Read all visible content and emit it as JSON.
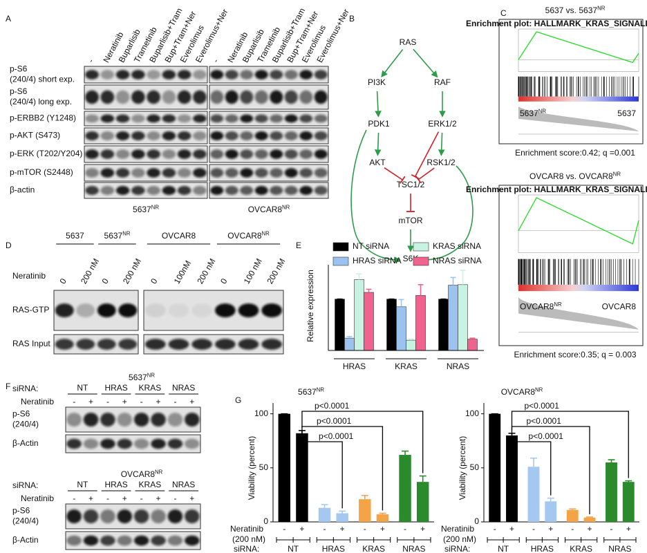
{
  "figure": {
    "panel_labels": [
      "A",
      "B",
      "C",
      "D",
      "E",
      "F",
      "G"
    ],
    "A": {
      "groups": [
        {
          "name": {
            "text": "5637",
            "sup": "NR"
          },
          "columns": [
            "-",
            "Neratinib",
            "Buparlisib",
            "Trametinib",
            "Buparlisib+Tram",
            "Bup+Tram+Ner",
            "Everolimus",
            "Everolimus+Ner"
          ]
        },
        {
          "name": {
            "text": "OVCAR8",
            "sup": "NR"
          },
          "columns": [
            "-",
            "Neratinib",
            "Buparlisib",
            "Trametinib",
            "Buparlisib+Tram",
            "Bup+Tram+Ner",
            "Everolimus",
            "Everolimus+Ner"
          ]
        }
      ],
      "rows": [
        [
          "p-S6",
          "(240/4) short exp."
        ],
        [
          "p-S6",
          "(240/4) long exp."
        ],
        [
          "p-ERBB2 (Y1248)"
        ],
        [
          "p-AKT (S473)"
        ],
        [
          "p-ERK (T202/Y204)"
        ],
        [
          "p-mTOR (S2448)"
        ],
        [
          "β-actin"
        ]
      ]
    },
    "B": {
      "nodes": [
        "RAS",
        "PI3K",
        "RAF",
        "PDK1",
        "ERK1/2",
        "AKT",
        "RSK1/2",
        "TSC1/2",
        "mTOR",
        "S6K"
      ]
    },
    "C": {
      "plots": [
        {
          "title": {
            "text": "5637 vs. 5637",
            "sup": "NR"
          },
          "plot_title": "Enrichment plot: HALLMARK_KRAS_SIGNALING_UP",
          "left": {
            "text": "5637",
            "sup": "NR"
          },
          "right": "5637",
          "caption": "Enrichment score:0.42; q =0.001"
        },
        {
          "title": {
            "text": "OVCAR8 vs. OVCAR8",
            "sup": "NR"
          },
          "plot_title": "Enrichment plot: HALLMARK_KRAS_SIGNALING_UP",
          "left": {
            "text": "OVCAR8",
            "sup": "NR"
          },
          "right": "OVCAR8",
          "caption": "Enrichment score:0.35; q = 0.003"
        }
      ]
    },
    "D": {
      "groups": [
        "5637",
        {
          "text": "5637",
          "sup": "NR"
        },
        "OVCAR8",
        {
          "text": "OVCAR8",
          "sup": "NR"
        }
      ],
      "treatment": "Neratinib",
      "lanes": [
        "0",
        "200 nM",
        "0",
        "200 nM",
        "0",
        "100nM",
        "200 nM",
        "0",
        "100 nM",
        "200 nM"
      ],
      "rows": [
        "RAS-GTP",
        "RAS Input"
      ]
    },
    "F": {
      "sirna_label": "siRNA:",
      "treatment_label": "Neratinib",
      "blots": [
        {
          "title": {
            "text": "5637",
            "sup": "NR"
          },
          "groups": [
            "NT",
            "HRAS",
            "KRAS",
            "NRAS"
          ],
          "signs": [
            "-",
            "+",
            "-",
            "+",
            "-",
            "+",
            "-",
            "+"
          ],
          "rows": [
            [
              "p-S6",
              "(240/4)"
            ],
            [
              "β-Actin"
            ]
          ]
        },
        {
          "title": {
            "text": "OVCAR8",
            "sup": "NR"
          },
          "groups": [
            "NT",
            "HRAS",
            "KRAS",
            "NRAS"
          ],
          "signs": [
            "-",
            "+",
            "-",
            "+",
            "-",
            "+",
            "-",
            "+"
          ],
          "rows": [
            [
              "p-S6",
              "(240/4)"
            ],
            [
              "β-Actin"
            ]
          ]
        }
      ]
    }
  },
  "chart_data": [
    {
      "type": "bar",
      "ylabel": "Relative expression",
      "categories": [
        "HRAS",
        "KRAS",
        "NRAS"
      ],
      "ylim": [
        0,
        1.6
      ],
      "series": [
        {
          "name": "NT siRNA",
          "color": "#000000",
          "values": [
            1,
            1,
            1
          ],
          "errors": [
            0,
            0,
            0
          ]
        },
        {
          "name": "HRAS siRNA",
          "color": "#9cc3ef",
          "values": [
            0.24,
            0.85,
            1.27
          ],
          "errors": [
            0.03,
            0.14,
            0.15
          ]
        },
        {
          "name": "KRAS siRNA",
          "color": "#c8f2e2",
          "values": [
            1.38,
            0.2,
            1.28
          ],
          "errors": [
            0.11,
            0.02,
            0.28
          ]
        },
        {
          "name": "NRAS siRNA",
          "color": "#f0638f",
          "values": [
            1.13,
            1.07,
            0.22
          ],
          "errors": [
            0.06,
            0.21,
            0.02
          ]
        }
      ]
    },
    {
      "type": "bar",
      "title": {
        "text": "5637",
        "sup": "NR"
      },
      "ylabel": "Viability (percent)",
      "categories": [
        "-",
        "+",
        "-",
        "+",
        "-",
        "+",
        "-",
        "+"
      ],
      "groups": [
        "NT",
        "HRAS",
        "KRAS",
        "NRAS"
      ],
      "category_label": [
        "Neratinib",
        "(200 nM)"
      ],
      "group_label": "siRNA:",
      "values": [
        100,
        82,
        13,
        8,
        21,
        7,
        62,
        37
      ],
      "errors": [
        0,
        2.5,
        3,
        2,
        3.5,
        1,
        3.5,
        5.5
      ],
      "colors": [
        "#000000",
        "#000000",
        "#a4c8f0",
        "#a4c8f0",
        "#f5a347",
        "#f5a347",
        "#2b8a2b",
        "#2b8a2b"
      ],
      "ylim": [
        0,
        110
      ],
      "yticks": [
        0,
        50,
        100
      ],
      "annotations": [
        "p<0.0001",
        "p<0.0001",
        "p<0.0001"
      ]
    },
    {
      "type": "bar",
      "title": {
        "text": "OVCAR8",
        "sup": "NR"
      },
      "ylabel": "Viability (percent)",
      "categories": [
        "-",
        "+",
        "-",
        "+",
        "-",
        "+",
        "-",
        "+"
      ],
      "groups": [
        "NT",
        "HRAS",
        "KRAS",
        "NRAS"
      ],
      "category_label": [
        "Neratinib",
        "(200 nM)"
      ],
      "group_label": "siRNA:",
      "values": [
        100,
        80,
        51,
        19,
        11,
        4,
        55,
        37
      ],
      "errors": [
        0,
        2,
        8,
        3,
        1,
        0.5,
        2.5,
        1
      ],
      "colors": [
        "#000000",
        "#000000",
        "#a4c8f0",
        "#a4c8f0",
        "#f5a347",
        "#f5a347",
        "#2b8a2b",
        "#2b8a2b"
      ],
      "ylim": [
        0,
        110
      ],
      "yticks": [
        0,
        50,
        100
      ],
      "annotations": [
        "p<0.0001",
        "p<0.0001",
        "p<0.0001"
      ]
    }
  ]
}
